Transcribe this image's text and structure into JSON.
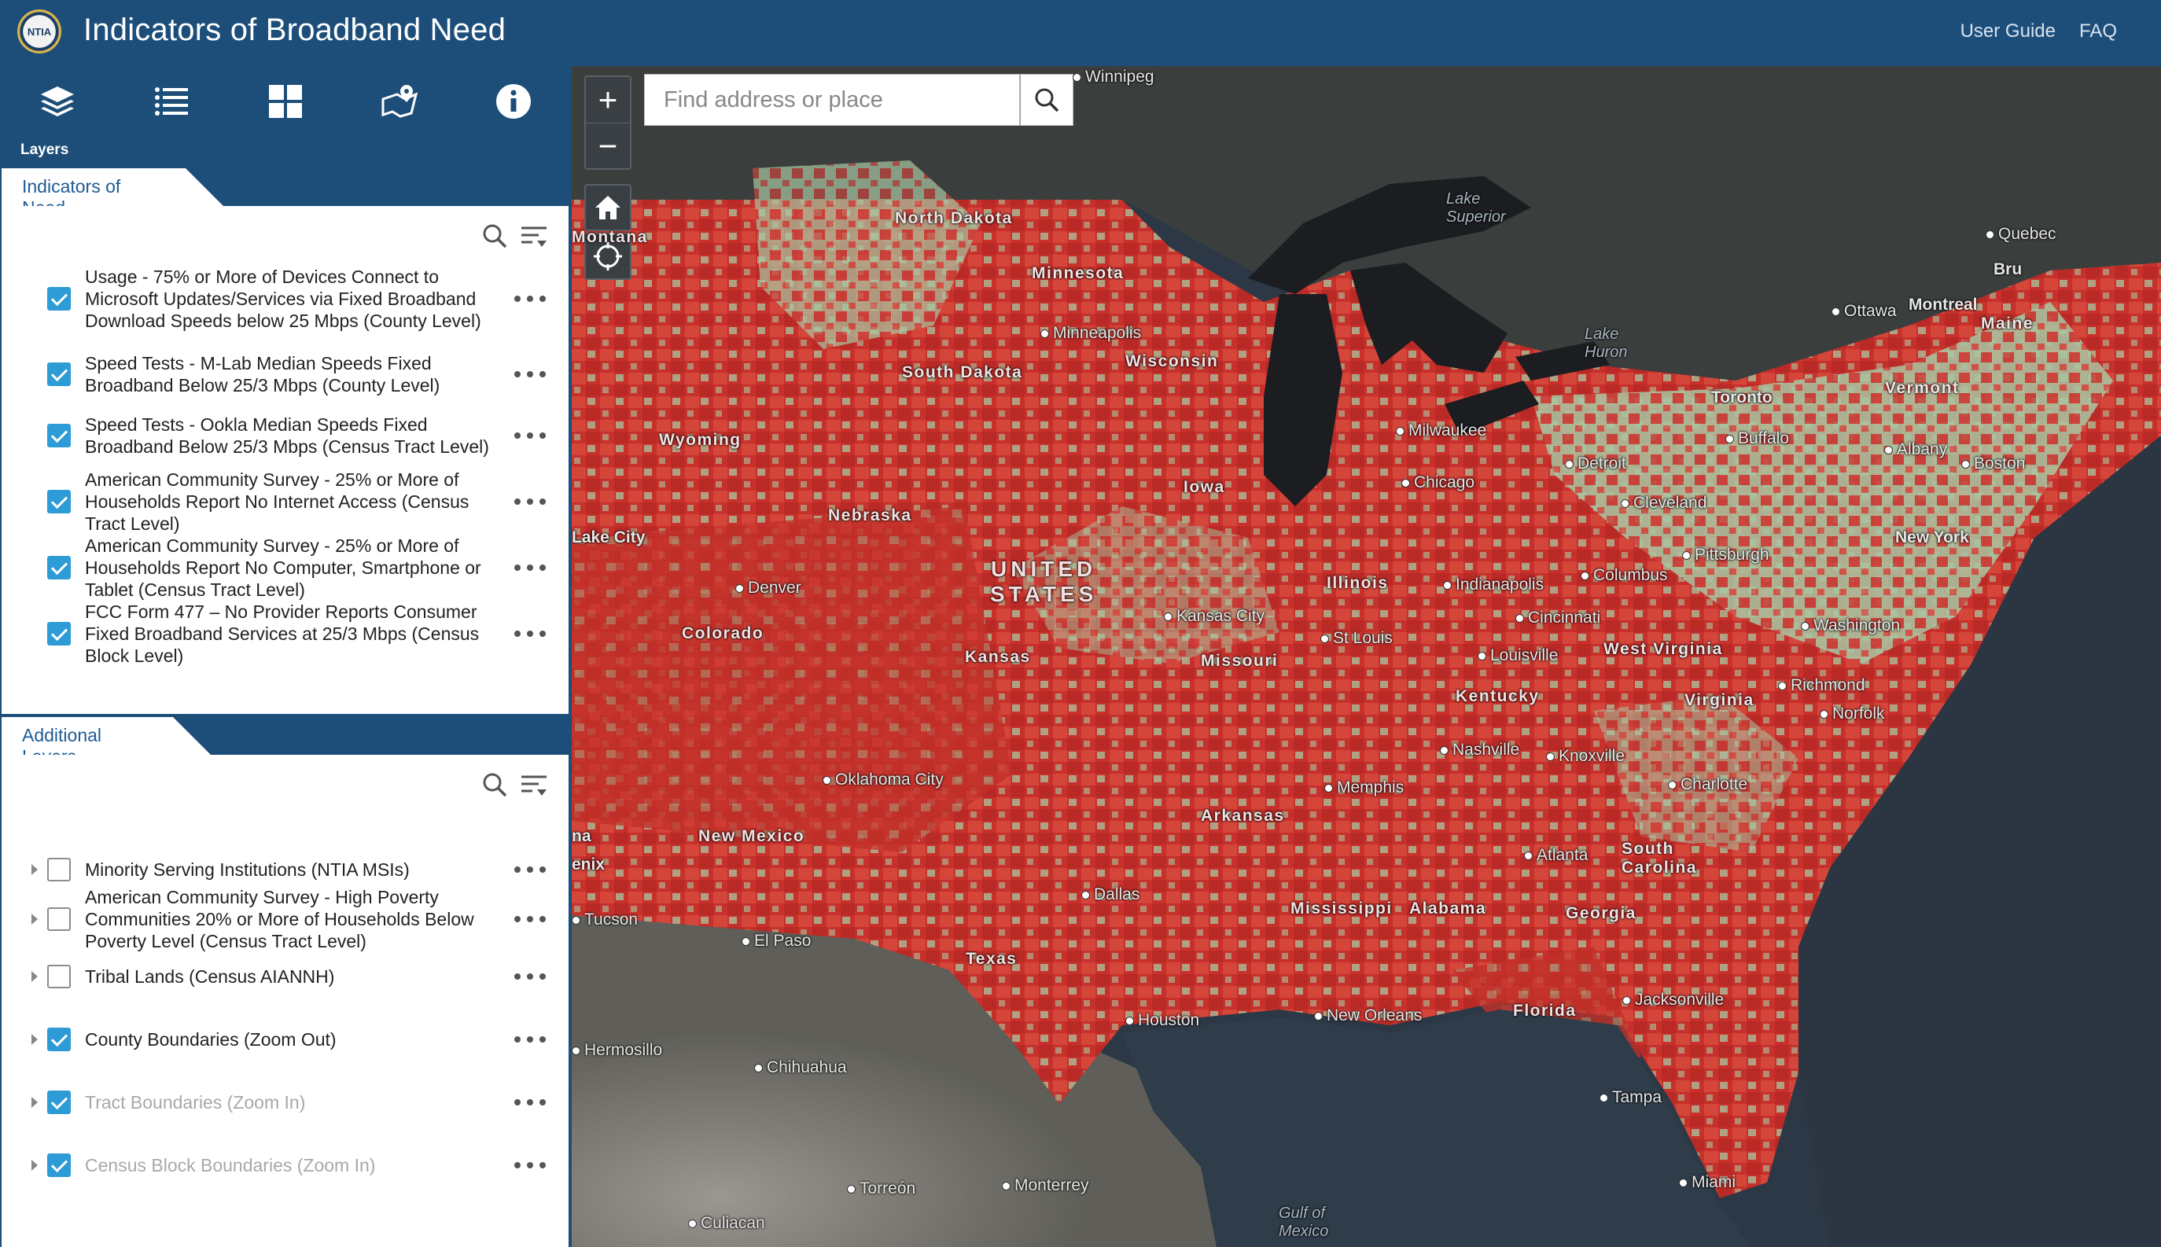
{
  "header": {
    "logo_text": "NTIA",
    "title": "Indicators of Broadband Need",
    "links": [
      "User Guide",
      "FAQ"
    ]
  },
  "toolbar": {
    "tools": [
      "layers-icon",
      "legend-list-icon",
      "basemap-grid-icon",
      "map-pin-icon",
      "info-icon"
    ],
    "active_label": "Layers"
  },
  "indicators": {
    "title": "Indicators of Need",
    "layers": [
      {
        "label": "Usage - 75% or More of Devices Connect to Microsoft Updates/Services via Fixed Broadband Download Speeds below 25 Mbps (County Level)",
        "checked": true
      },
      {
        "label": "Speed Tests - M-Lab Median Speeds Fixed Broadband Below 25/3 Mbps (County Level)",
        "checked": true
      },
      {
        "label": "Speed Tests - Ookla Median Speeds Fixed Broadband Below 25/3 Mbps (Census Tract Level)",
        "checked": true
      },
      {
        "label": "American Community Survey - 25% or More of Households Report No Internet Access (Census Tract Level)",
        "checked": true
      },
      {
        "label": "American Community Survey - 25% or More of Households Report No Computer, Smartphone or Tablet (Census Tract Level)",
        "checked": true
      },
      {
        "label": "FCC Form 477 – No Provider Reports Consumer Fixed Broadband Services at 25/3 Mbps (Census Block Level)",
        "checked": true
      }
    ]
  },
  "additional": {
    "title": "Additional Layers",
    "layers": [
      {
        "label": "Minority Serving Institutions (NTIA MSIs)",
        "checked": false,
        "dim": false
      },
      {
        "label": "American Community Survey - High Poverty Communities 20% or More of Households Below Poverty Level (Census Tract Level)",
        "checked": false,
        "dim": false
      },
      {
        "label": "Tribal Lands (Census AIANNH)",
        "checked": false,
        "dim": false
      },
      {
        "label": "County Boundaries (Zoom Out)",
        "checked": true,
        "dim": false
      },
      {
        "label": "Tract Boundaries (Zoom In)",
        "checked": true,
        "dim": true
      },
      {
        "label": "Census Block Boundaries (Zoom In)",
        "checked": true,
        "dim": true
      }
    ]
  },
  "map": {
    "zoom_in": "+",
    "zoom_out": "−",
    "search_placeholder": "Find address or place",
    "labels": {
      "winnipeg": "Winnipeg",
      "lake_superior": "Lake\nSuperior",
      "quebec": "Quebec",
      "bru": "Bru",
      "montana": "Montana",
      "north_dakota": "North Dakota",
      "minnesota": "Minnesota",
      "ottawa": "Ottawa",
      "montreal": "Montreal",
      "maine": "Maine",
      "minneapolis": "Minneapolis",
      "lake_huron": "Lake\nHuron",
      "wisconsin": "Wisconsin",
      "south_dakota": "South Dakota",
      "toronto": "Toronto",
      "vermont": "Vermont",
      "wyoming": "Wyoming",
      "milwaukee": "Milwaukee",
      "buffalo": "Buffalo",
      "albany": "Albany",
      "detroit": "Detroit",
      "boston": "Boston",
      "chicago": "Chicago",
      "iowa": "Iowa",
      "cleveland": "Cleveland",
      "nebraska": "Nebraska",
      "salt_lake": "Lake City",
      "new_york": "New York",
      "pittsburgh": "Pittsburgh",
      "united_states": "UNITED\nSTATES",
      "illinois": "Illinois",
      "indianapolis": "Indianapolis",
      "columbus": "Columbus",
      "denver": "Denver",
      "kansas_city": "Kansas City",
      "cincinnati": "Cincinnati",
      "washington": "Washington",
      "colorado": "Colorado",
      "st_louis": "St Louis",
      "west_virginia": "West Virginia",
      "kansas": "Kansas",
      "missouri": "Missouri",
      "louisville": "Louisville",
      "richmond": "Richmond",
      "kentucky": "Kentucky",
      "virginia": "Virginia",
      "norfolk": "Norfolk",
      "nashville": "Nashville",
      "knoxville": "Knoxville",
      "oklahoma_city": "Oklahoma City",
      "memphis": "Memphis",
      "charlotte": "Charlotte",
      "arkansas": "Arkansas",
      "new_mexico": "New Mexico",
      "south_carolina": "South\nCarolina",
      "na": "na",
      "phoenix": "enix",
      "atlanta": "Atlanta",
      "dallas": "Dallas",
      "mississippi": "Mississippi",
      "alabama": "Alabama",
      "georgia": "Georgia",
      "tucson": "Tucson",
      "el_paso": "El Paso",
      "texas": "Texas",
      "jacksonville": "Jacksonville",
      "new_orleans": "New Orleans",
      "houston": "Houston",
      "florida": "Florida",
      "hermosillo": "Hermosillo",
      "chihuahua": "Chihuahua",
      "tampa": "Tampa",
      "miami": "Miami",
      "monterrey": "Monterrey",
      "torreon": "Torreón",
      "culiacan": "Culiacan",
      "gulf": "Gulf of\nMexico"
    }
  },
  "colors": {
    "header": "#1d4e7a",
    "accent": "#2d9bd6",
    "need_red": "#c8302b",
    "low_need_green": "#a8c6a0"
  }
}
